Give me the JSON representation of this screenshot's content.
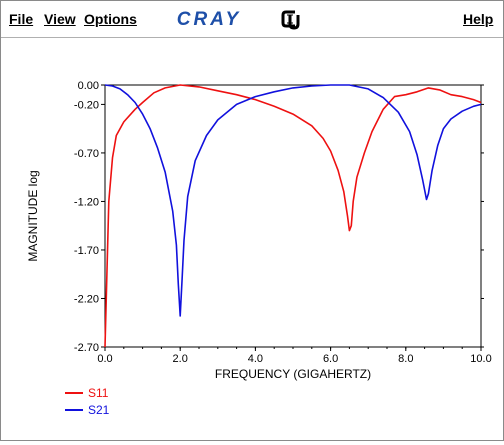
{
  "menu": {
    "file": "File",
    "view": "View",
    "options": "Options",
    "help": "Help"
  },
  "logo": {
    "brand": "CRAY",
    "brand_color": "#1e4fa8",
    "seal": "CU"
  },
  "chart_data": {
    "type": "line",
    "xlabel": "FREQUENCY (GIGAHERTZ)",
    "ylabel": "MAGNITUDE log",
    "xlim": [
      0.0,
      10.0
    ],
    "ylim": [
      -2.7,
      0.0
    ],
    "xticks": [
      "0.0",
      "2.0",
      "4.0",
      "6.0",
      "8.0",
      "10.0"
    ],
    "yticks": [
      "0.00",
      "-0.20",
      "-0.70",
      "-1.20",
      "-1.70",
      "-2.20",
      "-2.70"
    ],
    "legend_placement": "bottom-left",
    "grid": false,
    "series": [
      {
        "name": "S11",
        "color": "#ee1111",
        "x": [
          0.0,
          0.05,
          0.1,
          0.2,
          0.3,
          0.5,
          0.8,
          1.0,
          1.3,
          1.6,
          2.0,
          2.5,
          3.0,
          3.5,
          4.0,
          4.5,
          5.0,
          5.5,
          5.8,
          6.0,
          6.2,
          6.35,
          6.45,
          6.5,
          6.55,
          6.6,
          6.7,
          6.9,
          7.1,
          7.4,
          7.7,
          8.0,
          8.3,
          8.6,
          8.9,
          9.2,
          9.5,
          9.8,
          10.0
        ],
        "y": [
          -2.7,
          -1.95,
          -1.2,
          -0.75,
          -0.52,
          -0.38,
          -0.25,
          -0.18,
          -0.08,
          -0.03,
          0.0,
          -0.02,
          -0.06,
          -0.1,
          -0.15,
          -0.22,
          -0.3,
          -0.42,
          -0.55,
          -0.68,
          -0.88,
          -1.1,
          -1.35,
          -1.5,
          -1.45,
          -1.2,
          -0.95,
          -0.7,
          -0.48,
          -0.25,
          -0.12,
          -0.1,
          -0.07,
          -0.03,
          -0.05,
          -0.1,
          -0.12,
          -0.15,
          -0.18
        ]
      },
      {
        "name": "S21",
        "color": "#1111dd",
        "x": [
          0.0,
          0.2,
          0.4,
          0.6,
          0.8,
          1.0,
          1.2,
          1.4,
          1.6,
          1.8,
          1.9,
          1.95,
          2.0,
          2.05,
          2.1,
          2.2,
          2.4,
          2.7,
          3.0,
          3.5,
          4.0,
          4.5,
          5.0,
          5.5,
          6.0,
          6.5,
          7.0,
          7.4,
          7.8,
          8.1,
          8.3,
          8.45,
          8.55,
          8.6,
          8.7,
          8.85,
          9.0,
          9.2,
          9.5,
          9.8,
          10.0
        ],
        "y": [
          0.0,
          -0.01,
          -0.04,
          -0.1,
          -0.18,
          -0.3,
          -0.45,
          -0.65,
          -0.9,
          -1.3,
          -1.65,
          -2.05,
          -2.38,
          -2.0,
          -1.6,
          -1.15,
          -0.78,
          -0.52,
          -0.36,
          -0.2,
          -0.12,
          -0.07,
          -0.03,
          -0.01,
          0.0,
          0.0,
          -0.04,
          -0.13,
          -0.28,
          -0.48,
          -0.72,
          -0.98,
          -1.18,
          -1.12,
          -0.88,
          -0.62,
          -0.45,
          -0.35,
          -0.27,
          -0.22,
          -0.2
        ]
      }
    ]
  }
}
